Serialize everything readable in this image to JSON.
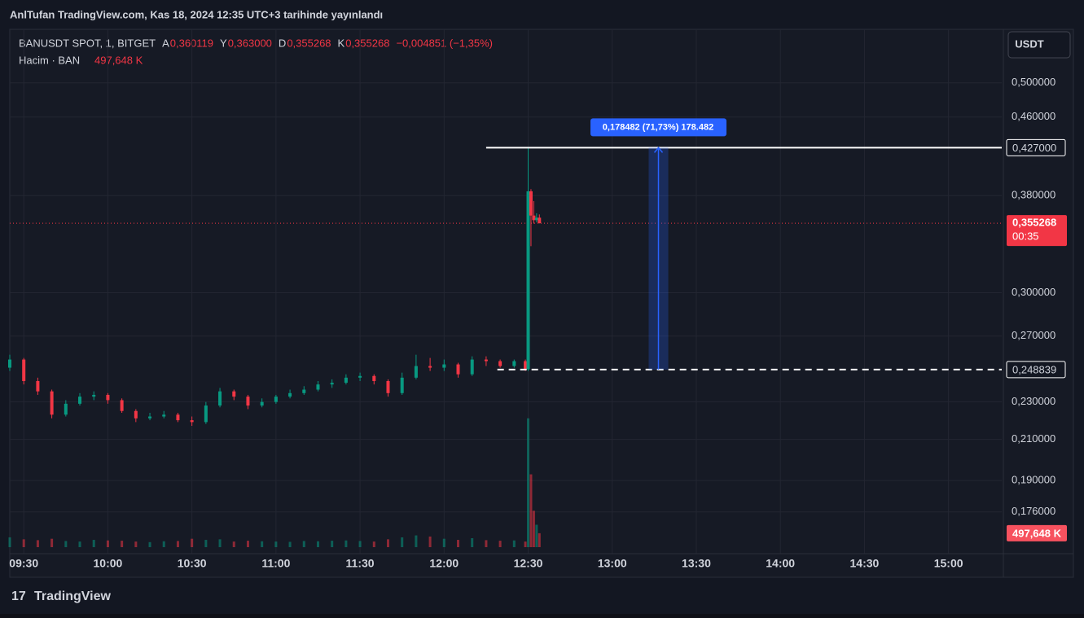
{
  "header": {
    "publisher": "AnlTufan TradingView.com, Kas 18, 2024 12:35 UTC+3 tarihinde yayınlandı",
    "footer": "TradingView"
  },
  "legend": {
    "symbol": "BANUSDT SPOT, 1, BITGET",
    "open_key": "A",
    "open": "0,360119",
    "high_key": "Y",
    "high": "0,363000",
    "low_key": "D",
    "low": "0,355268",
    "close_key": "K",
    "close": "0,355268",
    "change": "−0,004851 (−1,35%)",
    "volume_title": "Hacim · BAN",
    "volume": "497,648 K"
  },
  "currency_button": "USDT",
  "chart_data": {
    "type": "candlestick",
    "log_scale": true,
    "grid": true,
    "up_color": "#089981",
    "down_color": "#f23645",
    "x": [
      "09:25",
      "09:30",
      "09:35",
      "09:40",
      "09:45",
      "09:50",
      "09:55",
      "10:00",
      "10:05",
      "10:10",
      "10:15",
      "10:20",
      "10:25",
      "10:30",
      "10:35",
      "10:40",
      "10:45",
      "10:50",
      "10:55",
      "11:00",
      "11:05",
      "11:10",
      "11:15",
      "11:20",
      "11:25",
      "11:30",
      "11:35",
      "11:40",
      "11:45",
      "11:50",
      "11:55",
      "12:00",
      "12:05",
      "12:10",
      "12:15",
      "12:20",
      "12:25",
      "12:29",
      "12:30",
      "12:31",
      "12:32",
      "12:33",
      "12:34"
    ],
    "open": [
      0.25,
      0.255,
      0.242,
      0.236,
      0.223,
      0.229,
      0.233,
      0.234,
      0.231,
      0.225,
      0.221,
      0.222,
      0.223,
      0.22,
      0.219,
      0.228,
      0.236,
      0.233,
      0.228,
      0.23,
      0.233,
      0.235,
      0.237,
      0.24,
      0.241,
      0.244,
      0.245,
      0.242,
      0.235,
      0.244,
      0.251,
      0.25,
      0.252,
      0.246,
      0.255,
      0.254,
      0.251,
      0.254,
      0.249,
      0.384,
      0.362,
      0.358,
      0.360119
    ],
    "high": [
      0.258,
      0.256,
      0.244,
      0.237,
      0.231,
      0.235,
      0.236,
      0.235,
      0.232,
      0.226,
      0.224,
      0.225,
      0.224,
      0.222,
      0.23,
      0.238,
      0.237,
      0.234,
      0.232,
      0.234,
      0.237,
      0.239,
      0.242,
      0.243,
      0.246,
      0.247,
      0.246,
      0.243,
      0.247,
      0.258,
      0.256,
      0.255,
      0.253,
      0.257,
      0.257,
      0.255,
      0.255,
      0.255,
      0.427,
      0.386,
      0.375,
      0.364,
      0.363
    ],
    "low": [
      0.248,
      0.24,
      0.234,
      0.221,
      0.222,
      0.228,
      0.231,
      0.229,
      0.224,
      0.219,
      0.22,
      0.221,
      0.219,
      0.217,
      0.218,
      0.227,
      0.231,
      0.226,
      0.227,
      0.229,
      0.232,
      0.234,
      0.236,
      0.238,
      0.24,
      0.242,
      0.24,
      0.233,
      0.234,
      0.243,
      0.248,
      0.248,
      0.244,
      0.245,
      0.251,
      0.25,
      0.25,
      0.248,
      0.248,
      0.336,
      0.355,
      0.356,
      0.355268
    ],
    "close": [
      0.255,
      0.242,
      0.236,
      0.223,
      0.229,
      0.233,
      0.234,
      0.231,
      0.225,
      0.221,
      0.222,
      0.223,
      0.22,
      0.219,
      0.228,
      0.236,
      0.233,
      0.228,
      0.23,
      0.233,
      0.235,
      0.237,
      0.24,
      0.241,
      0.244,
      0.245,
      0.242,
      0.235,
      0.244,
      0.251,
      0.25,
      0.252,
      0.246,
      0.255,
      0.254,
      0.251,
      0.254,
      0.249,
      0.384,
      0.362,
      0.358,
      0.360119,
      0.355268
    ],
    "volume": [
      350,
      280,
      250,
      300,
      220,
      200,
      260,
      240,
      230,
      200,
      180,
      210,
      220,
      300,
      260,
      280,
      200,
      230,
      210,
      200,
      190,
      220,
      210,
      230,
      240,
      220,
      200,
      280,
      350,
      420,
      380,
      300,
      260,
      320,
      250,
      230,
      240,
      200,
      4600,
      2600,
      1300,
      800,
      497.648
    ],
    "volume_lim": [
      0,
      5000
    ],
    "xlim": [
      "09:25",
      "15:19"
    ],
    "xticks": [
      "09:30",
      "10:00",
      "10:30",
      "11:00",
      "11:30",
      "12:00",
      "12:30",
      "13:00",
      "13:30",
      "14:00",
      "14:30",
      "15:00"
    ],
    "ylim": [
      0.159,
      0.565
    ],
    "yticks": [
      {
        "value": 0.5,
        "label": "0,500000"
      },
      {
        "value": 0.46,
        "label": "0,460000"
      },
      {
        "value": 0.38,
        "label": "0,380000"
      },
      {
        "value": 0.3,
        "label": "0,300000"
      },
      {
        "value": 0.27,
        "label": "0,270000"
      },
      {
        "value": 0.23,
        "label": "0,230000"
      },
      {
        "value": 0.21,
        "label": "0,210000"
      },
      {
        "value": 0.19,
        "label": "0,190000"
      },
      {
        "value": 0.176,
        "label": "0,176000"
      }
    ],
    "current_price": {
      "value": 0.355268,
      "label": "0,355268",
      "countdown": "00:35"
    },
    "last_volume_label": "497,648 K",
    "levels": [
      {
        "value": 0.427,
        "label": "0,427000",
        "from": "12:15",
        "style": "solid"
      },
      {
        "value": 0.248839,
        "label": "0,248839",
        "from": "12:19",
        "style": "dashed"
      }
    ],
    "measure": {
      "from": "13:13",
      "to": "13:20",
      "label": "0,178482 (71,73%) 178.482"
    }
  }
}
